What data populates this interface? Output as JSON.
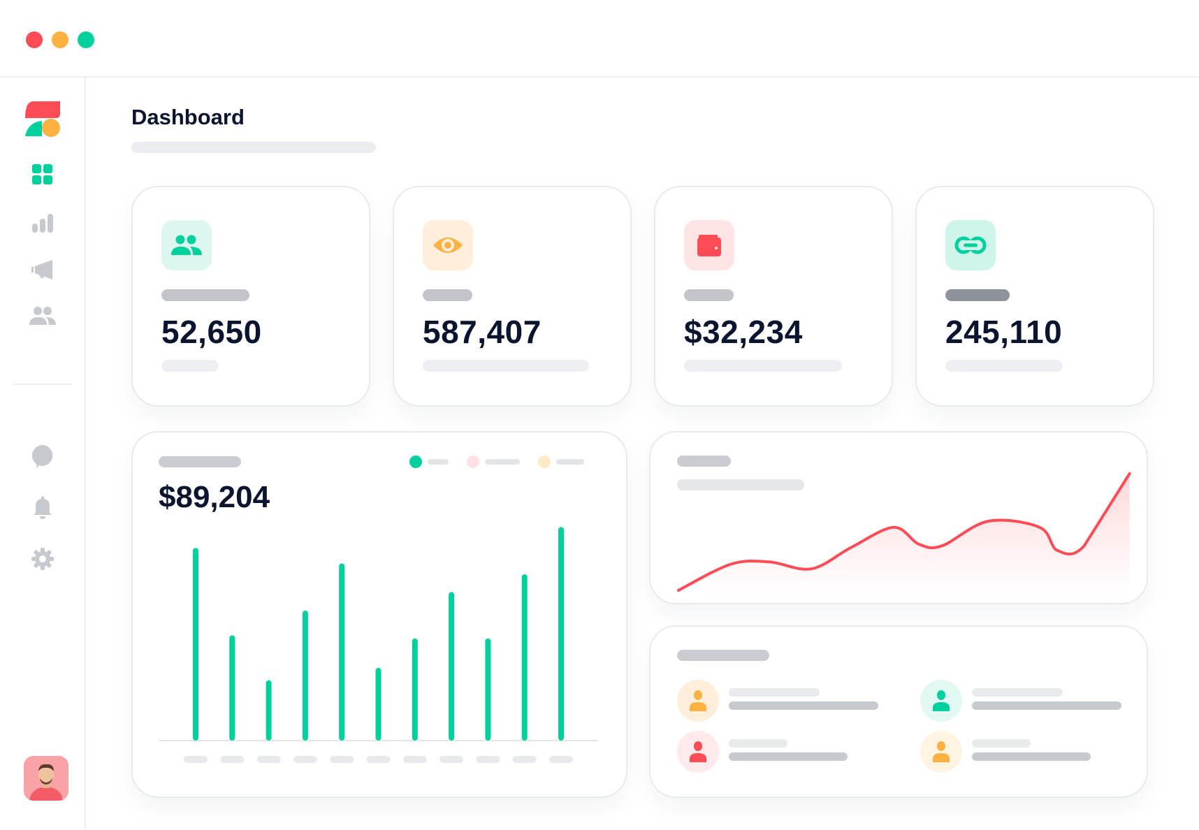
{
  "window": {
    "controls": [
      {
        "name": "close",
        "color": "#FF4B55"
      },
      {
        "name": "minimize",
        "color": "#FDB140"
      },
      {
        "name": "maximize",
        "color": "#00D09C"
      }
    ]
  },
  "sidebar": {
    "items": [
      {
        "icon": "grid-icon",
        "active": true
      },
      {
        "icon": "bar-chart-icon"
      },
      {
        "icon": "megaphone-icon"
      },
      {
        "icon": "users-icon"
      },
      {
        "icon": "chat-icon"
      },
      {
        "icon": "bell-icon"
      },
      {
        "icon": "gear-icon"
      }
    ]
  },
  "header": {
    "title": "Dashboard"
  },
  "stats": [
    {
      "icon": "users-icon",
      "value": "52,650",
      "color": "#00D09C",
      "bg": "#DDF7F0"
    },
    {
      "icon": "eye-icon",
      "value": "587,407",
      "color": "#FDB140",
      "bg": "#FFEEDA"
    },
    {
      "icon": "wallet-icon",
      "value": "$32,234",
      "color": "#FF4B55",
      "bg": "#FFE4E6"
    },
    {
      "icon": "link-icon",
      "value": "245,110",
      "color": "#00D09C",
      "bg": "#CFF5EA"
    }
  ],
  "revenue": {
    "value": "$89,204",
    "legend_colors": [
      "#00D09C",
      "#FFE1E4",
      "#FFE9C7"
    ]
  },
  "chart_data": [
    {
      "type": "bar",
      "title": "",
      "values": [
        249,
        136,
        78,
        168,
        229,
        94,
        132,
        192,
        132,
        215,
        276
      ],
      "ylim": [
        0,
        280
      ],
      "color": "#00D09C"
    },
    {
      "type": "area",
      "title": "",
      "values": [
        0,
        34,
        37,
        28,
        56,
        82,
        60,
        58,
        90,
        82,
        52,
        58,
        152
      ],
      "x": [
        0,
        68,
        118,
        173,
        225,
        280,
        313,
        343,
        403,
        470,
        493,
        528,
        587
      ],
      "color": "#FF4B55"
    }
  ]
}
